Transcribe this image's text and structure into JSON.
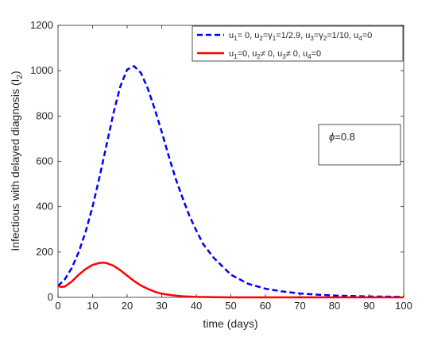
{
  "chart_data": {
    "type": "line",
    "title": "",
    "xlabel": "time (days)",
    "ylabel": "Infectious with delayed diagnosis (I",
    "ylabel_sub": "2",
    "ylabel_close": ")",
    "xlim": [
      0,
      100
    ],
    "ylim": [
      0,
      1200
    ],
    "xticks": [
      0,
      10,
      20,
      30,
      40,
      50,
      60,
      70,
      80,
      90,
      100
    ],
    "yticks": [
      0,
      200,
      400,
      600,
      800,
      1000,
      1200
    ],
    "grid": false,
    "legend_position": "top-right",
    "annotation": {
      "symbol": "ϕ",
      "text": "=0.8"
    },
    "series": [
      {
        "name": "u1= 0, u2=γ1=1/2.9, u3=γ2=1/10, u4=0",
        "legend_parts": [
          {
            "t": "u"
          },
          {
            "t": "1",
            "sub": true
          },
          {
            "t": "= 0, u"
          },
          {
            "t": "2",
            "sub": true
          },
          {
            "t": "=γ"
          },
          {
            "t": "1",
            "sub": true
          },
          {
            "t": "=1/2.9, u"
          },
          {
            "t": "3",
            "sub": true
          },
          {
            "t": "=γ"
          },
          {
            "t": "2",
            "sub": true
          },
          {
            "t": "=1/10, u"
          },
          {
            "t": "4",
            "sub": true
          },
          {
            "t": "=0"
          }
        ],
        "color": "#0000ff",
        "style": "dashed",
        "x": [
          0,
          2,
          4,
          6,
          8,
          10,
          12,
          14,
          16,
          18,
          20,
          22,
          24,
          26,
          28,
          30,
          32,
          34,
          36,
          38,
          40,
          42,
          45,
          50,
          55,
          60,
          65,
          70,
          75,
          80,
          85,
          90,
          95,
          100
        ],
        "y": [
          50,
          80,
          130,
          200,
          290,
          400,
          530,
          670,
          810,
          930,
          1005,
          1020,
          990,
          920,
          830,
          730,
          625,
          525,
          440,
          360,
          295,
          235,
          175,
          100,
          60,
          38,
          26,
          17,
          12,
          8,
          6,
          4,
          3,
          2
        ]
      },
      {
        "name": "u1=0, u2≠ 0, u3≠ 0, u4=0",
        "legend_parts": [
          {
            "t": "u"
          },
          {
            "t": "1",
            "sub": true
          },
          {
            "t": "=0, u"
          },
          {
            "t": "2",
            "sub": true
          },
          {
            "t": "≠ 0, u"
          },
          {
            "t": "3",
            "sub": true
          },
          {
            "t": "≠ 0, u"
          },
          {
            "t": "4",
            "sub": true
          },
          {
            "t": "=0"
          }
        ],
        "color": "#ff0000",
        "style": "solid",
        "x": [
          0,
          1,
          2,
          4,
          6,
          8,
          10,
          12,
          13,
          14,
          16,
          18,
          20,
          22,
          24,
          26,
          28,
          30,
          33,
          36,
          40,
          45,
          50,
          60,
          70,
          80,
          90,
          100
        ],
        "y": [
          50,
          46,
          48,
          70,
          100,
          125,
          143,
          152,
          153,
          151,
          140,
          120,
          96,
          72,
          52,
          37,
          25,
          16,
          9,
          5,
          2,
          1,
          0,
          0,
          0,
          0,
          0,
          0
        ]
      }
    ]
  }
}
